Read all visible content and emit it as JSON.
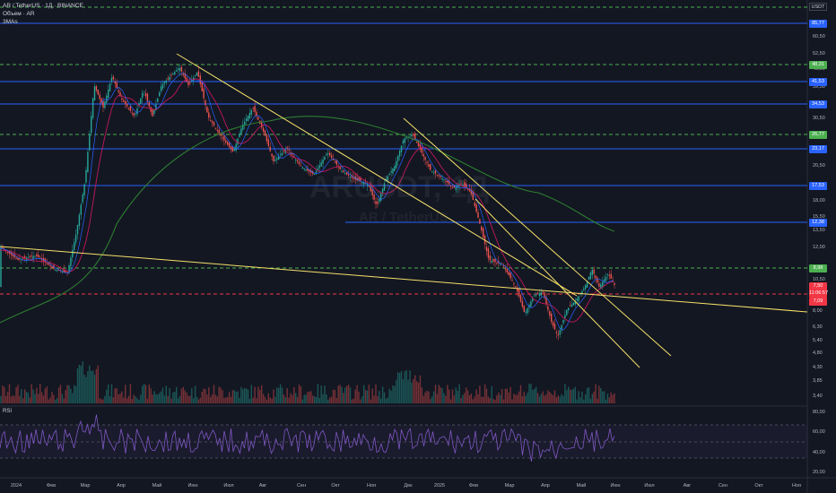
{
  "header": {
    "symbol": "AR / TetherUS · 1Д · BINANCE",
    "volume": "Объем · AR",
    "ma": "3MAs"
  },
  "watermark": {
    "ticker": "ARUSDT, 1Д",
    "name": "AR / TetherUS"
  },
  "currency": "USDT",
  "price_axis": [
    "60,50",
    "52,50",
    "45,50",
    "39,50",
    "34,50",
    "30,50",
    "25,50",
    "23,00",
    "20,50",
    "18,00",
    "15,50",
    "13,50",
    "12,00",
    "10,50",
    "8,00",
    "6,30",
    "5,40",
    "4,80",
    "4,30",
    "3,85",
    "3,40",
    "3,04"
  ],
  "level_badges": [
    {
      "label": "85,77",
      "color": "#2962ff"
    },
    {
      "label": "48,31",
      "color": "#4caf50"
    },
    {
      "label": "41,53",
      "color": "#2962ff"
    },
    {
      "label": "34,53",
      "color": "#2962ff"
    },
    {
      "label": "26,77",
      "color": "#4caf50"
    },
    {
      "label": "23,17",
      "color": "#2962ff"
    },
    {
      "label": "17,53",
      "color": "#2962ff"
    },
    {
      "label": "12,38",
      "color": "#2962ff"
    },
    {
      "label": "8,98",
      "color": "#4caf50"
    },
    {
      "label": "7,50",
      "color": "#f23645"
    },
    {
      "label": "11:06:57",
      "color": "#f23645"
    },
    {
      "label": "7,09",
      "color": "#f23645"
    }
  ],
  "rsi": {
    "label": "RSI",
    "axis": [
      "80,00",
      "60,00",
      "40,00",
      "20,00"
    ]
  },
  "time_axis": [
    "2024",
    "Фев",
    "Мар",
    "Апр",
    "Май",
    "Июн",
    "Июл",
    "Авг",
    "Сен",
    "Окт",
    "Ноя",
    "Дек",
    "2025",
    "Фев",
    "Мар",
    "Апр",
    "Май",
    "Июн",
    "Июл",
    "Авг",
    "Сен",
    "Окт",
    "Ноя"
  ],
  "colors": {
    "bg": "#131722",
    "up": "#26a69a",
    "down": "#ef5350",
    "blue_level": "#2962ff",
    "green_level": "#4caf50",
    "red_level": "#f23645",
    "trend": "#f5e06a",
    "ma_long": "#2e7d32",
    "rsi": "#7e57c2"
  }
}
